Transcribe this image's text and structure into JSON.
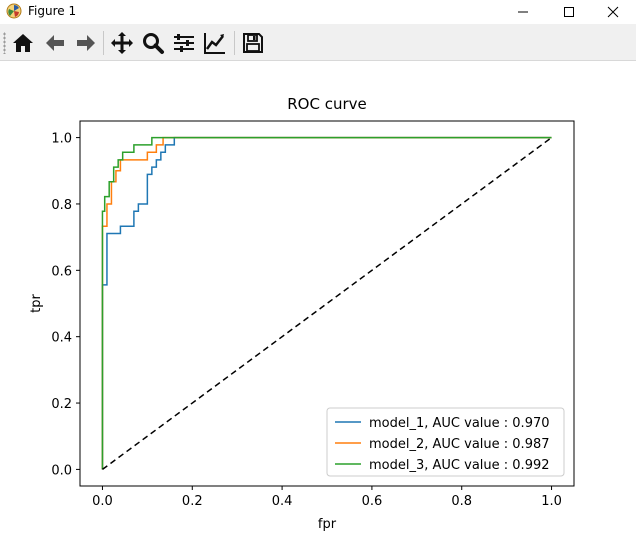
{
  "window": {
    "title": "Figure 1"
  },
  "toolbar": {
    "tools": [
      "home-icon",
      "back-icon",
      "forward-icon",
      "pan-icon",
      "zoom-icon",
      "configure-subplots-icon",
      "edit-axis-icon",
      "save-icon"
    ]
  },
  "chart_data": {
    "type": "line",
    "title": "ROC curve",
    "xlabel": "fpr",
    "ylabel": "tpr",
    "xlim": [
      -0.05,
      1.05
    ],
    "ylim": [
      -0.05,
      1.05
    ],
    "xticks": [
      0.0,
      0.2,
      0.4,
      0.6,
      0.8,
      1.0
    ],
    "xtick_labels": [
      "0.0",
      "0.2",
      "0.4",
      "0.6",
      "0.8",
      "1.0"
    ],
    "yticks": [
      0.0,
      0.2,
      0.4,
      0.6,
      0.8,
      1.0
    ],
    "ytick_labels": [
      "0.0",
      "0.2",
      "0.4",
      "0.6",
      "0.8",
      "1.0"
    ],
    "legend_position": "lower-right",
    "series": [
      {
        "name": "model_1, AUC value : 0.970",
        "color": "#1f77b4",
        "x": [
          0,
          0,
          0.01,
          0.01,
          0.04,
          0.04,
          0.07,
          0.07,
          0.08,
          0.08,
          0.1,
          0.1,
          0.11,
          0.11,
          0.12,
          0.12,
          0.13,
          0.13,
          0.14,
          0.14,
          0.16,
          0.16,
          1.0
        ],
        "y": [
          0,
          0.556,
          0.556,
          0.711,
          0.711,
          0.733,
          0.733,
          0.778,
          0.778,
          0.8,
          0.8,
          0.889,
          0.889,
          0.911,
          0.911,
          0.933,
          0.933,
          0.956,
          0.956,
          0.978,
          0.978,
          1.0,
          1.0
        ]
      },
      {
        "name": "model_2, AUC value : 0.987",
        "color": "#ff7f0e",
        "x": [
          0,
          0,
          0.01,
          0.01,
          0.02,
          0.02,
          0.03,
          0.03,
          0.04,
          0.04,
          0.1,
          0.1,
          0.12,
          0.12,
          0.135,
          0.135,
          1.0
        ],
        "y": [
          0,
          0.733,
          0.733,
          0.8,
          0.8,
          0.867,
          0.867,
          0.9,
          0.9,
          0.933,
          0.933,
          0.956,
          0.956,
          0.978,
          0.978,
          1.0,
          1.0
        ]
      },
      {
        "name": "model_3, AUC value : 0.992",
        "color": "#2ca02c",
        "x": [
          0,
          0,
          0.005,
          0.005,
          0.015,
          0.015,
          0.025,
          0.025,
          0.035,
          0.035,
          0.045,
          0.045,
          0.07,
          0.07,
          0.11,
          0.11,
          1.0
        ],
        "y": [
          0,
          0.778,
          0.778,
          0.822,
          0.822,
          0.867,
          0.867,
          0.911,
          0.911,
          0.933,
          0.933,
          0.956,
          0.956,
          0.978,
          0.978,
          1.0,
          1.0
        ]
      }
    ],
    "reference_line": {
      "x": [
        0,
        1
      ],
      "y": [
        0,
        1
      ],
      "style": "dashed",
      "color": "#000000"
    }
  }
}
